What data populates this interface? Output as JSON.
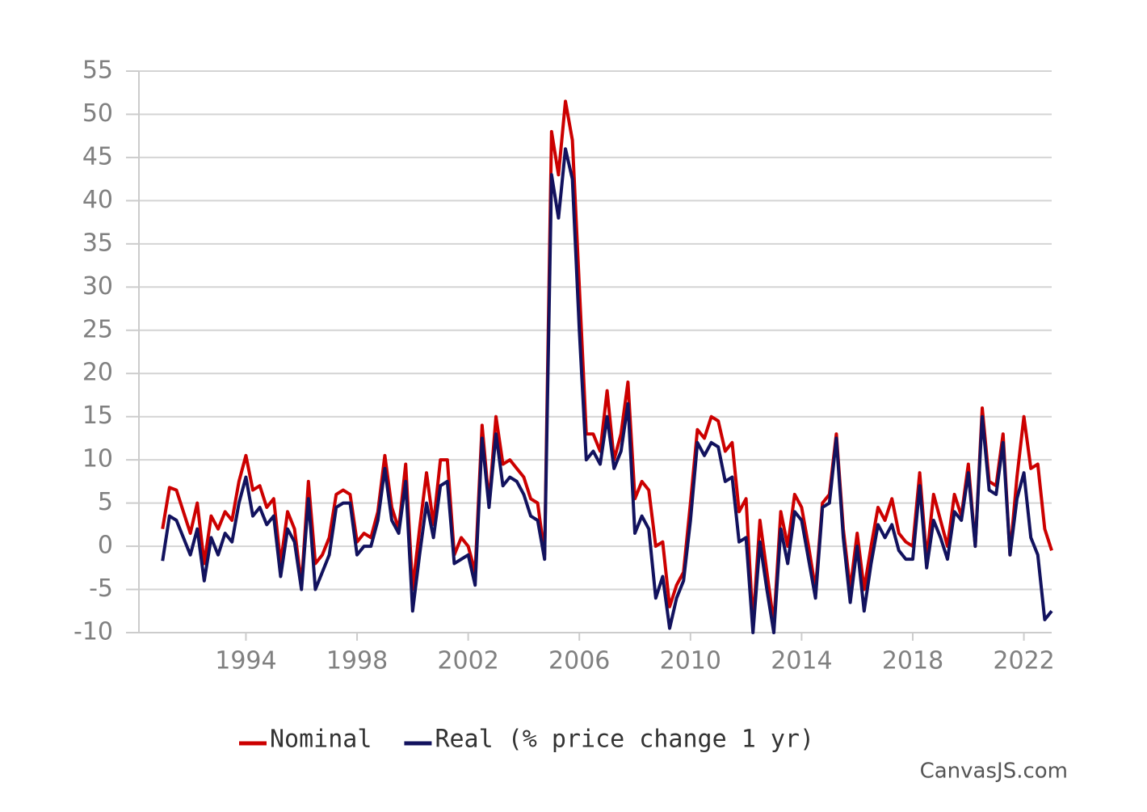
{
  "chart_data": {
    "type": "line",
    "x": [
      1991,
      1991.25,
      1991.5,
      1991.75,
      1992,
      1992.25,
      1992.5,
      1992.75,
      1993,
      1993.25,
      1993.5,
      1993.75,
      1994,
      1994.25,
      1994.5,
      1994.75,
      1995,
      1995.25,
      1995.5,
      1995.75,
      1996,
      1996.25,
      1996.5,
      1996.75,
      1997,
      1997.25,
      1997.5,
      1997.75,
      1998,
      1998.25,
      1998.5,
      1998.75,
      1999,
      1999.25,
      1999.5,
      1999.75,
      2000,
      2000.25,
      2000.5,
      2000.75,
      2001,
      2001.25,
      2001.5,
      2001.75,
      2002,
      2002.25,
      2002.5,
      2002.75,
      2003,
      2003.25,
      2003.5,
      2003.75,
      2004,
      2004.25,
      2004.5,
      2004.75,
      2005,
      2005.25,
      2005.5,
      2005.75,
      2006,
      2006.25,
      2006.5,
      2006.75,
      2007,
      2007.25,
      2007.5,
      2007.75,
      2008,
      2008.25,
      2008.5,
      2008.75,
      2009,
      2009.25,
      2009.5,
      2009.75,
      2010,
      2010.25,
      2010.5,
      2010.75,
      2011,
      2011.25,
      2011.5,
      2011.75,
      2012,
      2012.25,
      2012.5,
      2012.75,
      2013,
      2013.25,
      2013.5,
      2013.75,
      2014,
      2014.25,
      2014.5,
      2014.75,
      2015,
      2015.25,
      2015.5,
      2015.75,
      2016,
      2016.25,
      2016.5,
      2016.75,
      2017,
      2017.25,
      2017.5,
      2017.75,
      2018,
      2018.25,
      2018.5,
      2018.75,
      2019,
      2019.25,
      2019.5,
      2019.75,
      2020,
      2020.25,
      2020.5,
      2020.75,
      2021,
      2021.25,
      2021.5,
      2021.75,
      2022,
      2022.25,
      2022.5,
      2022.75,
      2023
    ],
    "series": [
      {
        "name": "Nominal",
        "color": "#cc0000",
        "values": [
          2,
          6.8,
          6.5,
          4,
          1.5,
          5,
          -2,
          3.5,
          2,
          4,
          3,
          7.5,
          10.5,
          6.5,
          7,
          4.5,
          5.5,
          -2,
          4,
          2,
          -4.5,
          7.5,
          -2,
          -1,
          1,
          6,
          6.5,
          6,
          0.5,
          1.5,
          1,
          4,
          10.5,
          4.5,
          2,
          9.5,
          -5,
          2,
          8.5,
          2.5,
          10,
          10,
          -1,
          1,
          0,
          -3,
          14,
          5,
          15,
          9.5,
          10,
          9,
          8,
          5.5,
          5,
          -1,
          48,
          43,
          51.5,
          47,
          30,
          13,
          13,
          11,
          18,
          10,
          13,
          19,
          5.5,
          7.5,
          6.5,
          0,
          0.5,
          -7,
          -4.5,
          -3,
          5,
          13.5,
          12.5,
          15,
          14.5,
          11,
          12,
          4,
          5.5,
          -9,
          3,
          -3,
          -9,
          4,
          0,
          6,
          4.5,
          0,
          -5,
          5,
          6,
          13,
          2,
          -5,
          1.5,
          -5,
          0,
          4.5,
          3,
          5.5,
          1.5,
          0.5,
          0,
          8.5,
          -1.5,
          6,
          3,
          0,
          6,
          3.5,
          9.5,
          0,
          16,
          7.5,
          7,
          13,
          -1,
          8,
          15,
          9,
          9.5,
          2,
          -0.5
        ]
      },
      {
        "name": "Real (% price change 1 yr)",
        "color": "#12125e",
        "values": [
          -1.7,
          3.5,
          3,
          1,
          -1,
          2,
          -4,
          1,
          -1,
          1.5,
          0.5,
          5,
          8,
          3.5,
          4.5,
          2.5,
          3.5,
          -3.5,
          2,
          0.5,
          -5,
          5.5,
          -5,
          -3,
          -1,
          4.5,
          5,
          5,
          -1,
          0,
          0,
          3,
          9,
          3,
          1.5,
          7.5,
          -7.5,
          -1,
          5,
          1,
          7,
          7.5,
          -2,
          -1.5,
          -1,
          -4.5,
          12.5,
          4.5,
          13,
          7,
          8,
          7.5,
          6,
          3.5,
          3,
          -1.5,
          43,
          38,
          46,
          42.5,
          25,
          10,
          11,
          9.5,
          15,
          9,
          11,
          16.5,
          1.5,
          3.5,
          2,
          -6,
          -3.5,
          -9.5,
          -6,
          -4,
          3,
          12,
          10.5,
          12,
          11.5,
          7.5,
          8,
          0.5,
          1,
          -10,
          0.5,
          -5,
          -10,
          2,
          -2,
          4,
          3,
          -1.5,
          -6,
          4.5,
          5,
          12.5,
          1,
          -6.5,
          0,
          -7.5,
          -2,
          2.5,
          1,
          2.5,
          -0.5,
          -1.5,
          -1.5,
          7,
          -2.5,
          3,
          1,
          -1.5,
          4,
          3,
          8.5,
          0,
          15,
          6.5,
          6,
          12,
          -1,
          5.5,
          8.5,
          1,
          -1,
          -8.5,
          -7.5
        ]
      }
    ],
    "xlim": [
      1990.15,
      2023
    ],
    "xticks": [
      1994,
      1998,
      2002,
      2006,
      2010,
      2014,
      2018,
      2022
    ],
    "ylim": [
      -10,
      55
    ],
    "yticks": [
      -10,
      -5,
      0,
      5,
      10,
      15,
      20,
      25,
      30,
      35,
      40,
      45,
      50,
      55
    ],
    "grid": true,
    "legend": "bottom",
    "credit": "CanvasJS.com"
  }
}
